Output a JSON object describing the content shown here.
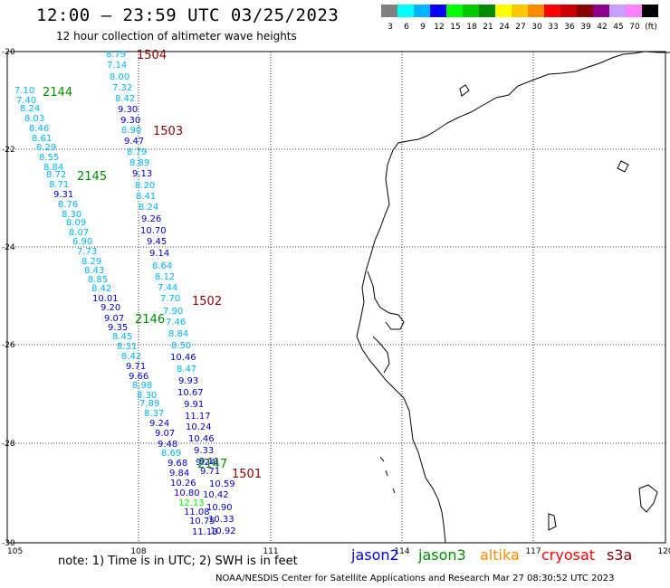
{
  "header": {
    "title": "12:00 – 23:59 UTC 03/25/2023",
    "subtitle": "12 hour collection of altimeter wave heights"
  },
  "colorbar": {
    "labels": [
      "3",
      "6",
      "9",
      "12",
      "15",
      "18",
      "21",
      "24",
      "27",
      "30",
      "33",
      "36",
      "39",
      "42",
      "45",
      "70",
      "(ft)"
    ],
    "colors": [
      "#808080",
      "#00ffff",
      "#00b4ff",
      "#0000ff",
      "#00ff00",
      "#00c800",
      "#008c00",
      "#ffff00",
      "#ffc800",
      "#ff8c00",
      "#ff0000",
      "#c80000",
      "#8b0000",
      "#8c008c",
      "#c8a0ff",
      "#ff80ff",
      "#000000"
    ]
  },
  "map": {
    "lon_ticks": [
      "105",
      "108",
      "111",
      "114",
      "117",
      "120"
    ],
    "lat_ticks": [
      "-20",
      "-22",
      "-24",
      "-26",
      "-28",
      "-30"
    ]
  },
  "passes": [
    {
      "label": "1504",
      "color": "#8b0000"
    },
    {
      "label": "2144",
      "color": "#008c00"
    },
    {
      "label": "1503",
      "color": "#8b0000"
    },
    {
      "label": "2145",
      "color": "#008c00"
    },
    {
      "label": "1502",
      "color": "#8b0000"
    },
    {
      "label": "2146",
      "color": "#008c00"
    },
    {
      "label": "2147",
      "color": "#008c00"
    },
    {
      "label": "1501",
      "color": "#8b0000"
    }
  ],
  "observations": [
    {
      "v": "8.79",
      "c": "#00b4ff"
    },
    {
      "v": "7.14",
      "c": "#00b4ff"
    },
    {
      "v": "8.00",
      "c": "#00b4ff"
    },
    {
      "v": "7.32",
      "c": "#00b4ff"
    },
    {
      "v": "8.42",
      "c": "#00b4ff"
    },
    {
      "v": "9.30",
      "c": "#0000c8"
    },
    {
      "v": "9.30",
      "c": "#0000c8"
    },
    {
      "v": "8.90",
      "c": "#00b4ff"
    },
    {
      "v": "9.47",
      "c": "#0000c8"
    },
    {
      "v": "8.79",
      "c": "#00b4ff"
    },
    {
      "v": "8.89",
      "c": "#00b4ff"
    },
    {
      "v": "9.13",
      "c": "#0000c8"
    },
    {
      "v": "8.20",
      "c": "#00b4ff"
    },
    {
      "v": "8.41",
      "c": "#00b4ff"
    },
    {
      "v": "8.24",
      "c": "#00b4ff"
    },
    {
      "v": "9.26",
      "c": "#0000c8"
    },
    {
      "v": "10.70",
      "c": "#0000c8"
    },
    {
      "v": "9.45",
      "c": "#0000c8"
    },
    {
      "v": "9.14",
      "c": "#0000c8"
    },
    {
      "v": "8.64",
      "c": "#00b4ff"
    },
    {
      "v": "8.12",
      "c": "#00b4ff"
    },
    {
      "v": "7.44",
      "c": "#00b4ff"
    },
    {
      "v": "7.70",
      "c": "#00b4ff"
    },
    {
      "v": "7.90",
      "c": "#00b4ff"
    },
    {
      "v": "7.46",
      "c": "#00b4ff"
    },
    {
      "v": "8.84",
      "c": "#00b4ff"
    },
    {
      "v": "8.50",
      "c": "#00b4ff"
    },
    {
      "v": "10.46",
      "c": "#0000c8"
    },
    {
      "v": "8.47",
      "c": "#00b4ff"
    },
    {
      "v": "9.93",
      "c": "#0000c8"
    },
    {
      "v": "10.67",
      "c": "#0000c8"
    },
    {
      "v": "9.91",
      "c": "#0000c8"
    },
    {
      "v": "11.17",
      "c": "#0000c8"
    },
    {
      "v": "10.24",
      "c": "#0000c8"
    },
    {
      "v": "10.46",
      "c": "#0000c8"
    },
    {
      "v": "9.33",
      "c": "#0000c8"
    },
    {
      "v": "9.24",
      "c": "#0000c8"
    },
    {
      "v": "9.71",
      "c": "#0000c8"
    },
    {
      "v": "10.59",
      "c": "#0000c8"
    },
    {
      "v": "10.42",
      "c": "#0000c8"
    },
    {
      "v": "10.90",
      "c": "#0000c8"
    },
    {
      "v": "10.33",
      "c": "#0000c8"
    },
    {
      "v": "10.92",
      "c": "#0000c8"
    },
    {
      "v": "7.10",
      "c": "#00b4ff"
    },
    {
      "v": "7.40",
      "c": "#00b4ff"
    },
    {
      "v": "8.24",
      "c": "#00b4ff"
    },
    {
      "v": "8.03",
      "c": "#00b4ff"
    },
    {
      "v": "8.46",
      "c": "#00b4ff"
    },
    {
      "v": "8.61",
      "c": "#00b4ff"
    },
    {
      "v": "8.29",
      "c": "#00b4ff"
    },
    {
      "v": "8.55",
      "c": "#00b4ff"
    },
    {
      "v": "8.84",
      "c": "#00b4ff"
    },
    {
      "v": "8.72",
      "c": "#00b4ff"
    },
    {
      "v": "8.71",
      "c": "#00b4ff"
    },
    {
      "v": "9.31",
      "c": "#0000c8"
    },
    {
      "v": "8.76",
      "c": "#00b4ff"
    },
    {
      "v": "8.30",
      "c": "#00b4ff"
    },
    {
      "v": "8.09",
      "c": "#00b4ff"
    },
    {
      "v": "8.07",
      "c": "#00b4ff"
    },
    {
      "v": "6.90",
      "c": "#00b4ff"
    },
    {
      "v": "7.73",
      "c": "#00b4ff"
    },
    {
      "v": "8.29",
      "c": "#00b4ff"
    },
    {
      "v": "8.43",
      "c": "#00b4ff"
    },
    {
      "v": "8.85",
      "c": "#00b4ff"
    },
    {
      "v": "8.42",
      "c": "#00b4ff"
    },
    {
      "v": "10.01",
      "c": "#0000c8"
    },
    {
      "v": "9.20",
      "c": "#0000c8"
    },
    {
      "v": "9.07",
      "c": "#0000c8"
    },
    {
      "v": "9.35",
      "c": "#0000c8"
    },
    {
      "v": "8.45",
      "c": "#00b4ff"
    },
    {
      "v": "8.31",
      "c": "#00b4ff"
    },
    {
      "v": "8.42",
      "c": "#00b4ff"
    },
    {
      "v": "9.71",
      "c": "#0000c8"
    },
    {
      "v": "9.66",
      "c": "#0000c8"
    },
    {
      "v": "8.98",
      "c": "#00b4ff"
    },
    {
      "v": "8.30",
      "c": "#00b4ff"
    },
    {
      "v": "7.89",
      "c": "#00b4ff"
    },
    {
      "v": "8.37",
      "c": "#00b4ff"
    },
    {
      "v": "9.24",
      "c": "#0000c8"
    },
    {
      "v": "9.07",
      "c": "#0000c8"
    },
    {
      "v": "9.48",
      "c": "#0000c8"
    },
    {
      "v": "8.69",
      "c": "#00b4ff"
    },
    {
      "v": "9.68",
      "c": "#0000c8"
    },
    {
      "v": "9.84",
      "c": "#0000c8"
    },
    {
      "v": "10.26",
      "c": "#0000c8"
    },
    {
      "v": "10.80",
      "c": "#0000c8"
    },
    {
      "v": "12.13",
      "c": "#00ff00"
    },
    {
      "v": "11.08",
      "c": "#0000c8"
    },
    {
      "v": "10.75",
      "c": "#0000c8"
    },
    {
      "v": "11.13",
      "c": "#0000c8"
    },
    {
      "v": "9.11",
      "c": "#0000c8"
    }
  ],
  "footer": {
    "note": "note: 1) Time is in UTC; 2) SWH is in feet",
    "credit": "NOAA/NESDIS Center for Satellite Applications and Research     Mar 27 08:30:52 UTC 2023",
    "satellites": [
      {
        "name": "jason2",
        "color": "#0000ff"
      },
      {
        "name": "jason3",
        "color": "#008c00"
      },
      {
        "name": "altika",
        "color": "#ff8c00"
      },
      {
        "name": "cryosat",
        "color": "#ff0000"
      },
      {
        "name": "s3a",
        "color": "#8b0000"
      }
    ]
  }
}
